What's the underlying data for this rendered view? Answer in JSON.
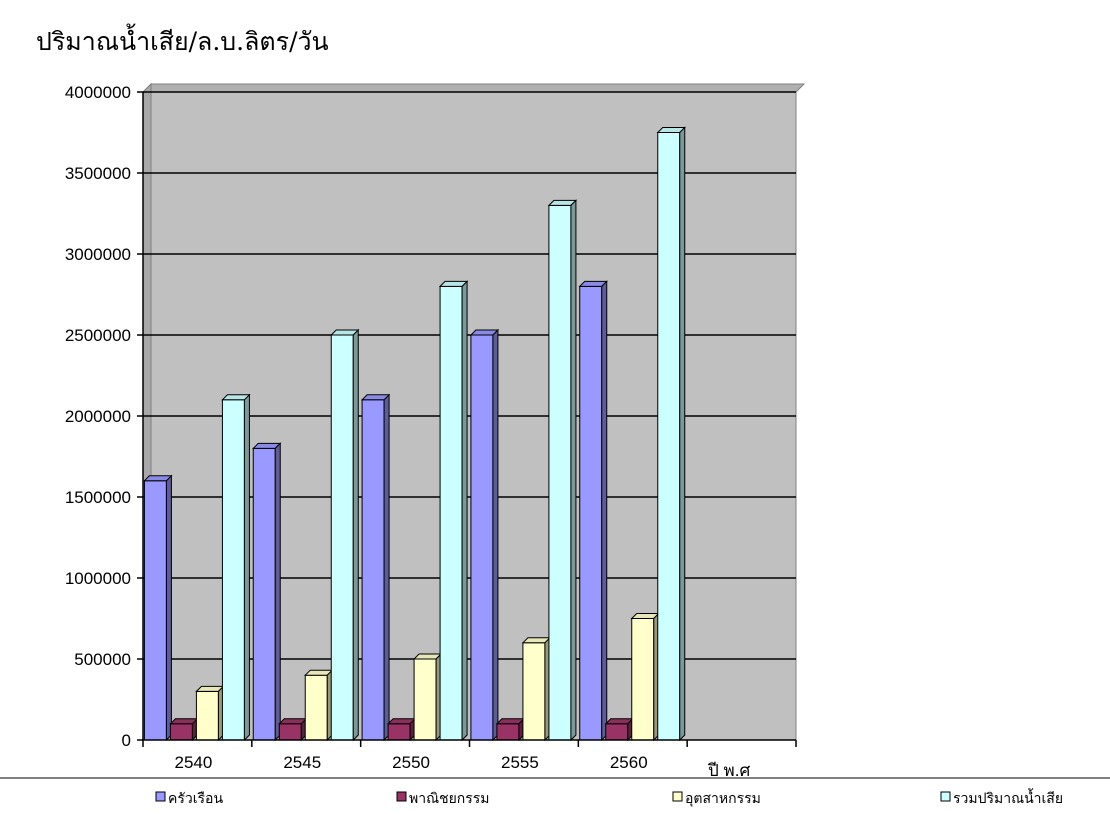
{
  "page": {
    "title": "ปริมาณน้ำเสีย/ล.บ.ลิตร/วัน"
  },
  "chart_data": {
    "type": "bar",
    "title": "ปริมาณน้ำเสีย/ล.บ.ลิตร/วัน",
    "xlabel": "ปี พ.ศ",
    "ylabel": "",
    "categories": [
      "2540",
      "2545",
      "2550",
      "2555",
      "2560"
    ],
    "y_ticks": [
      "0",
      "500000",
      "1000000",
      "1500000",
      "2000000",
      "2500000",
      "3000000",
      "3500000",
      "4000000"
    ],
    "ylim": [
      0,
      4000000
    ],
    "grid": true,
    "legend_position": "bottom",
    "series": [
      {
        "name": "ครัวเรือน",
        "color": "#9999ff",
        "values": [
          1600000,
          1800000,
          2100000,
          2500000,
          2800000
        ]
      },
      {
        "name": "พาณิชยกรรม",
        "color": "#993366",
        "values": [
          100000,
          100000,
          100000,
          100000,
          100000
        ]
      },
      {
        "name": "อุตสาหกรรม",
        "color": "#ffffcc",
        "values": [
          300000,
          400000,
          500000,
          600000,
          750000
        ]
      },
      {
        "name": "รวมปริมาณน้ำเสีย",
        "color": "#ccffff",
        "values": [
          2100000,
          2500000,
          2800000,
          3300000,
          3750000
        ]
      }
    ],
    "plot_background": "#c0c0c0"
  }
}
